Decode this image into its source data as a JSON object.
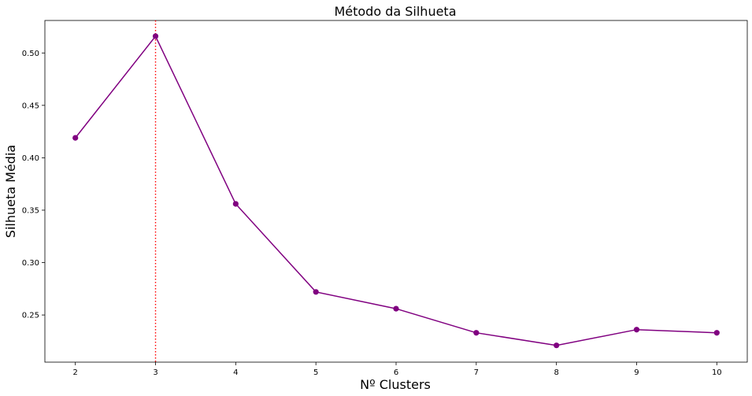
{
  "chart_data": {
    "type": "line",
    "title": "Método da Silhueta",
    "xlabel": "Nº Clusters",
    "ylabel": "Silhueta Média",
    "x": [
      2,
      3,
      4,
      5,
      6,
      7,
      8,
      9,
      10
    ],
    "series": [
      {
        "values": [
          0.419,
          0.516,
          0.356,
          0.272,
          0.256,
          0.233,
          0.221,
          0.236,
          0.233
        ],
        "color": "#800080",
        "marker": "circle"
      }
    ],
    "xlim": [
      1.62,
      10.38
    ],
    "ylim": [
      0.205,
      0.531
    ],
    "xticks": [
      2,
      3,
      4,
      5,
      6,
      7,
      8,
      9,
      10
    ],
    "yticks": [
      0.25,
      0.3,
      0.35,
      0.4,
      0.45,
      0.5
    ],
    "ytick_labels": [
      "0.25",
      "0.30",
      "0.35",
      "0.40",
      "0.45",
      "0.50"
    ],
    "reference_line": {
      "x": 3,
      "color": "#ff0000",
      "style": "dotted"
    },
    "grid": false,
    "legend": "none"
  }
}
